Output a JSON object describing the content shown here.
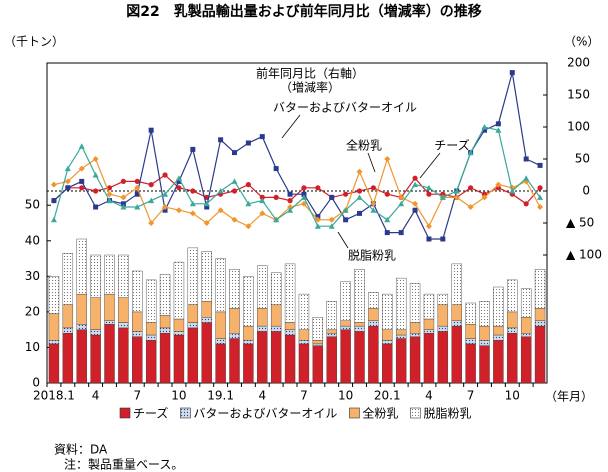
{
  "title": "図22　乳製品輸出量および前年同月比（増減率）の推移",
  "y_unit": "（千トン）",
  "y2_unit": "（%）",
  "x_unit": "（年月）",
  "source": "資料：DA",
  "note": "注：製品重量ベース。",
  "chart_data": [
    {
      "type": "bar",
      "stacked": true,
      "categories": [
        "2018.1",
        null,
        null,
        "4",
        null,
        null,
        "7",
        null,
        null,
        "10",
        null,
        null,
        "19.1",
        null,
        null,
        "4",
        null,
        null,
        "7",
        null,
        null,
        "10",
        null,
        null,
        "20.1",
        null,
        null,
        "4",
        null,
        null,
        "7",
        null,
        null,
        "10",
        null,
        null
      ],
      "ylim": [
        0,
        90
      ],
      "yticks": [
        0,
        10,
        20,
        30,
        40,
        50
      ],
      "grid": false,
      "legend": "bottom",
      "series": [
        {
          "name": "チーズ",
          "color": "#d0202a",
          "pattern": "solid",
          "values": [
            11,
            14,
            15,
            13.5,
            16.5,
            15.5,
            13,
            12,
            14,
            13.5,
            15.5,
            17,
            11,
            12.5,
            11,
            14.5,
            14.5,
            13.5,
            11,
            10.5,
            13,
            15,
            14.5,
            16,
            11,
            12.5,
            13,
            14,
            14.5,
            16,
            11,
            10.5,
            12,
            14,
            13,
            16
          ]
        },
        {
          "name": "バターおよびバターオイル",
          "color": "#cfdbe8",
          "pattern": "dots",
          "values": [
            1,
            1.5,
            1.5,
            1.5,
            1,
            1.5,
            1.5,
            1.5,
            1.5,
            1,
            1.5,
            1.5,
            1.5,
            1.5,
            1,
            1.5,
            1.5,
            1.5,
            1,
            0.5,
            1,
            1,
            1.5,
            1.5,
            1,
            1,
            1,
            1,
            1.5,
            1.5,
            1.5,
            1.5,
            1.5,
            1.5,
            1,
            1.5
          ]
        },
        {
          "name": "全粉乳",
          "color": "#f6b26b",
          "pattern": "solid",
          "values": [
            7.5,
            6.5,
            8.5,
            9,
            7.5,
            7,
            5.5,
            3.5,
            3.5,
            3.5,
            5,
            4.5,
            7.5,
            7,
            4,
            5,
            6,
            2,
            3,
            1,
            1,
            1.5,
            1,
            3.5,
            3,
            1.5,
            3,
            3,
            6,
            4.5,
            4,
            4,
            2.5,
            4.5,
            4.5,
            3.5
          ]
        },
        {
          "name": "脱脂粉乳",
          "color": "#ffffff",
          "pattern": "dots",
          "values": [
            10.5,
            14.5,
            15.5,
            12,
            11,
            12,
            11.5,
            12,
            11.5,
            16,
            16,
            14,
            15,
            11,
            14,
            12,
            9,
            16.5,
            10,
            6.5,
            8,
            11,
            15,
            4.5,
            10,
            14.5,
            11,
            7,
            3,
            11.5,
            6,
            7,
            11,
            9,
            8,
            11
          ]
        }
      ]
    },
    {
      "type": "line",
      "annotation": "前年同月比（右軸）",
      "annotation2": "（増減率）",
      "y2lim": [
        -300,
        200
      ],
      "y2ticks": [
        {
          "value": -100,
          "label": "▲ 100"
        },
        {
          "value": -50,
          "label": "▲ 50"
        },
        0,
        50,
        100,
        150,
        200
      ],
      "zero_line": true,
      "series": [
        {
          "name": "チーズ",
          "axis": "y2",
          "color": "#d0202a",
          "marker": "circle",
          "values": [
            -15,
            5,
            5,
            0,
            5,
            15,
            15,
            10,
            25,
            5,
            0,
            -10,
            -5,
            0,
            10,
            -10,
            -10,
            -15,
            5,
            5,
            -10,
            -5,
            0,
            5,
            -5,
            -10,
            20,
            -5,
            -5,
            -10,
            5,
            -5,
            5,
            -5,
            -20,
            5
          ]
        },
        {
          "name": "バターおよびバターオイル",
          "axis": "y2",
          "color": "#2b3a8c",
          "marker": "square",
          "values": [
            -15,
            5,
            15,
            -25,
            -15,
            -20,
            -5,
            95,
            -30,
            15,
            65,
            -25,
            80,
            60,
            75,
            85,
            35,
            -5,
            -5,
            -40,
            -10,
            -45,
            -35,
            -20,
            -65,
            -65,
            -30,
            -75,
            -75,
            0,
            60,
            95,
            105,
            185,
            50,
            40
          ]
        },
        {
          "name": "全粉乳",
          "axis": "y2",
          "color": "#f0962e",
          "marker": "diamond",
          "values": [
            10,
            15,
            35,
            50,
            -5,
            -10,
            5,
            -50,
            -25,
            -30,
            -35,
            -50,
            -30,
            -45,
            -55,
            -35,
            -45,
            -25,
            -20,
            -45,
            -45,
            -30,
            30,
            -20,
            50,
            -10,
            -20,
            -55,
            -10,
            -10,
            -25,
            -10,
            10,
            5,
            15,
            -25
          ]
        },
        {
          "name": "脱脂粉乳",
          "axis": "y2",
          "color": "#3aa89a",
          "marker": "triangle",
          "values": [
            -45,
            35,
            70,
            25,
            -15,
            -25,
            -25,
            -15,
            -5,
            20,
            -20,
            -20,
            0,
            15,
            -20,
            -15,
            -45,
            -30,
            -10,
            -55,
            -55,
            -30,
            -10,
            -30,
            -45,
            -20,
            10,
            5,
            -10,
            0,
            60,
            100,
            95,
            0,
            20,
            -10
          ]
        }
      ]
    }
  ]
}
